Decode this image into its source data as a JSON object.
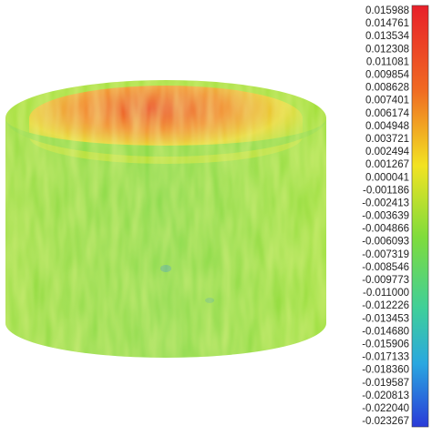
{
  "colorbar": {
    "labels": [
      "0.015988",
      "0.014761",
      "0.013534",
      "0.012308",
      "0.011081",
      "0.009854",
      "0.008628",
      "0.007401",
      "0.006174",
      "0.004948",
      "0.003721",
      "0.002494",
      "0.001267",
      "0.000041",
      "-0.001186",
      "-0.002413",
      "-0.003639",
      "-0.004866",
      "-0.006093",
      "-0.007319",
      "-0.008546",
      "-0.009773",
      "-0.011000",
      "-0.012226",
      "-0.013453",
      "-0.014680",
      "-0.015906",
      "-0.017133",
      "-0.018360",
      "-0.019587",
      "-0.020813",
      "-0.022040",
      "-0.023267"
    ]
  }
}
